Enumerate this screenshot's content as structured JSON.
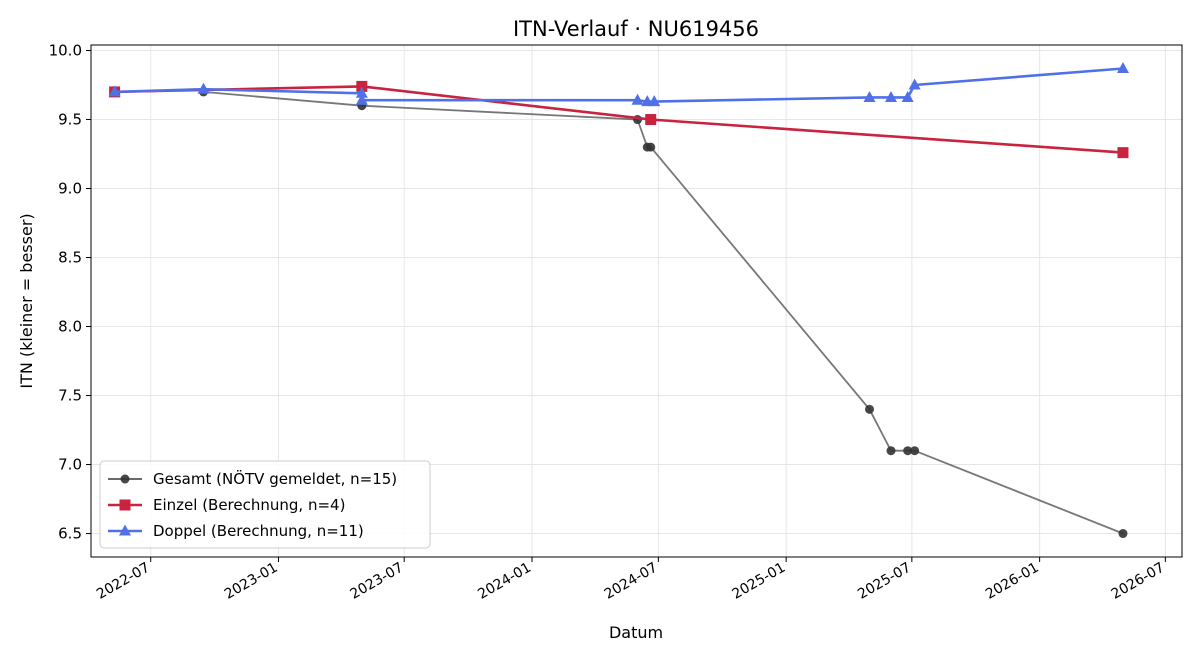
{
  "chart_data": {
    "type": "line",
    "title": "ITN-Verlauf · NU619456",
    "xlabel": "Datum",
    "ylabel": "ITN  (kleiner = besser)",
    "x_ticks": [
      "2022-07",
      "2023-01",
      "2023-07",
      "2024-01",
      "2024-07",
      "2025-01",
      "2025-07",
      "2026-01",
      "2026-07"
    ],
    "y_ticks": [
      "6.5",
      "7.0",
      "7.5",
      "8.0",
      "8.5",
      "9.0",
      "9.5",
      "10.0"
    ],
    "xlim": [
      "2022-04-06",
      "2026-07-25"
    ],
    "ylim": [
      6.33,
      10.04
    ],
    "grid": true,
    "legend_position": "lower-left",
    "series": [
      {
        "name": "Gesamt (NÖTV gemeldet, n=15)",
        "color": "#555555",
        "marker": "circle",
        "points": [
          {
            "x": "2022-09-15",
            "y": 9.7
          },
          {
            "x": "2023-05-01",
            "y": 9.6
          },
          {
            "x": "2024-06-01",
            "y": 9.5
          },
          {
            "x": "2024-06-15",
            "y": 9.3
          },
          {
            "x": "2024-06-20",
            "y": 9.3
          },
          {
            "x": "2025-05-01",
            "y": 7.4
          },
          {
            "x": "2025-06-01",
            "y": 7.1
          },
          {
            "x": "2025-06-25",
            "y": 7.1
          },
          {
            "x": "2025-07-05",
            "y": 7.1
          },
          {
            "x": "2026-05-01",
            "y": 6.5
          }
        ]
      },
      {
        "name": "Einzel (Berechnung, n=4)",
        "color": "#c8233f",
        "marker": "square",
        "points": [
          {
            "x": "2022-05-10",
            "y": 9.7
          },
          {
            "x": "2023-05-01",
            "y": 9.74
          },
          {
            "x": "2024-06-20",
            "y": 9.5
          },
          {
            "x": "2026-05-01",
            "y": 9.26
          }
        ]
      },
      {
        "name": "Doppel (Berechnung, n=11)",
        "color": "#5070e8",
        "marker": "triangle",
        "points": [
          {
            "x": "2022-05-10",
            "y": 9.7
          },
          {
            "x": "2022-09-15",
            "y": 9.72
          },
          {
            "x": "2023-05-01",
            "y": 9.69
          },
          {
            "x": "2023-05-01",
            "y": 9.64
          },
          {
            "x": "2024-06-01",
            "y": 9.64
          },
          {
            "x": "2024-06-15",
            "y": 9.63
          },
          {
            "x": "2024-06-25",
            "y": 9.63
          },
          {
            "x": "2025-05-01",
            "y": 9.66
          },
          {
            "x": "2025-06-01",
            "y": 9.66
          },
          {
            "x": "2025-06-25",
            "y": 9.66
          },
          {
            "x": "2025-07-05",
            "y": 9.75
          },
          {
            "x": "2026-05-01",
            "y": 9.87
          }
        ]
      }
    ]
  }
}
